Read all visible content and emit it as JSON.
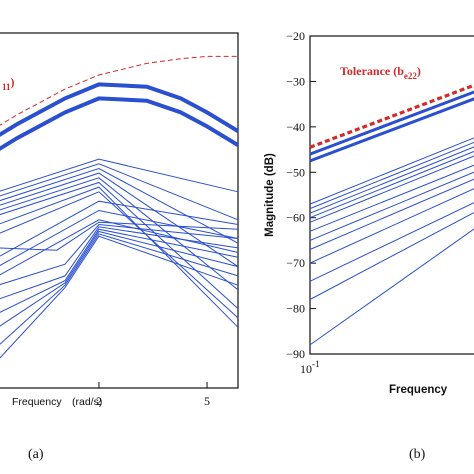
{
  "colors": {
    "series": "#2a4fd0",
    "tolerance": "#d42a2a",
    "axis": "#111111"
  },
  "chart_data": [
    {
      "panel": "a",
      "type": "line",
      "panel_label": "(a)",
      "xlabel_left": "Frequency",
      "xlabel_right": "(rad/s)",
      "xscale": "log",
      "xticks": [
        2,
        5
      ],
      "xlim": [
        0.85,
        6.5
      ],
      "ylim": [
        -92,
        -16
      ],
      "annotation": {
        "text_main": "",
        "text_sub": "11",
        "text_close": ")"
      },
      "tolerance": {
        "x": [
          0.85,
          1,
          1.5,
          2,
          3,
          4,
          5,
          6.5
        ],
        "y": [
          -36,
          -33.5,
          -28,
          -25,
          -22.5,
          -21.5,
          -21,
          -21
        ]
      },
      "thick_series": [
        {
          "x": [
            0.85,
            1,
            1.5,
            2,
            3,
            4,
            5,
            6.5
          ],
          "y": [
            -38,
            -35.5,
            -30,
            -27,
            -27.5,
            -30,
            -33,
            -37
          ]
        },
        {
          "x": [
            0.85,
            1,
            1.5,
            2,
            3,
            4,
            5,
            6.5
          ],
          "y": [
            -41,
            -38.5,
            -33,
            -30,
            -30.5,
            -33,
            -36,
            -40
          ]
        }
      ],
      "series": [
        {
          "x": [
            0.85,
            2,
            6.5
          ],
          "y": [
            -50,
            -43,
            -50
          ]
        },
        {
          "x": [
            0.85,
            2,
            6.5
          ],
          "y": [
            -51,
            -44,
            -56
          ]
        },
        {
          "x": [
            0.85,
            2,
            6.5
          ],
          "y": [
            -52,
            -45,
            -61
          ]
        },
        {
          "x": [
            0.85,
            2,
            6.5
          ],
          "y": [
            -53,
            -46,
            -66
          ]
        },
        {
          "x": [
            0.85,
            2,
            6.5
          ],
          "y": [
            -54,
            -47,
            -71
          ]
        },
        {
          "x": [
            0.85,
            2,
            6.5
          ],
          "y": [
            -55,
            -48,
            -75
          ]
        },
        {
          "x": [
            0.85,
            2,
            6.5
          ],
          "y": [
            -57,
            -49,
            -79
          ]
        },
        {
          "x": [
            0.85,
            2,
            6.5
          ],
          "y": [
            -59,
            -50,
            -77
          ]
        },
        {
          "x": [
            0.85,
            2,
            6.5
          ],
          "y": [
            -64,
            -52,
            -57
          ]
        },
        {
          "x": [
            0.85,
            2,
            6.5
          ],
          "y": [
            -66,
            -54,
            -60
          ]
        },
        {
          "x": [
            0.85,
            2,
            6.5
          ],
          "y": [
            -68,
            -56,
            -63
          ]
        },
        {
          "x": [
            0.85,
            1.4,
            2,
            6.5
          ],
          "y": [
            -62,
            -62.5,
            -56.5,
            -58
          ]
        },
        {
          "x": [
            0.85,
            1.5,
            2,
            6.5
          ],
          "y": [
            -70,
            -65.5,
            -57,
            -60
          ]
        },
        {
          "x": [
            0.85,
            1.5,
            2,
            6.5
          ],
          "y": [
            -73,
            -68,
            -57.5,
            -62
          ]
        },
        {
          "x": [
            0.85,
            1.5,
            2,
            6.5
          ],
          "y": [
            -76,
            -69,
            -58,
            -64
          ]
        },
        {
          "x": [
            0.85,
            1.5,
            2,
            6.5
          ],
          "y": [
            -79,
            -69.5,
            -58.5,
            -66
          ]
        },
        {
          "x": [
            0.85,
            1.5,
            2,
            6.5
          ],
          "y": [
            -83,
            -70,
            -59,
            -68
          ]
        },
        {
          "x": [
            0.85,
            1.5,
            2,
            6.5
          ],
          "y": [
            -86,
            -70.5,
            -59.5,
            -70
          ]
        }
      ]
    },
    {
      "panel": "b",
      "type": "line",
      "panel_label": "(b)",
      "xlabel": "Frequency",
      "ylabel": "Magnitude (dB)",
      "xscale": "log",
      "xlim": [
        0.1,
        0.3
      ],
      "ylim": [
        -90,
        -20
      ],
      "yticks": [
        -20,
        -30,
        -40,
        -50,
        -60,
        -70,
        -80,
        -90
      ],
      "xtick_label_base": "10",
      "xtick_label_exp": "-1",
      "annotation": {
        "text_main": "Tolerance (b",
        "text_sub": "e22",
        "text_close": ")"
      },
      "tolerance": {
        "x": [
          0.1,
          0.3
        ],
        "y": [
          -44.5,
          -29.5
        ]
      },
      "thick_series": [
        {
          "x": [
            0.1,
            0.3
          ],
          "y": [
            -46,
            -31
          ]
        },
        {
          "x": [
            0.1,
            0.3
          ],
          "y": [
            -47.5,
            -32.5
          ]
        }
      ],
      "series": [
        {
          "x": [
            0.1,
            0.3
          ],
          "y": [
            -57,
            -41
          ]
        },
        {
          "x": [
            0.1,
            0.3
          ],
          "y": [
            -58,
            -42
          ]
        },
        {
          "x": [
            0.1,
            0.3
          ],
          "y": [
            -59,
            -43
          ]
        },
        {
          "x": [
            0.1,
            0.3
          ],
          "y": [
            -60,
            -44
          ]
        },
        {
          "x": [
            0.1,
            0.3
          ],
          "y": [
            -61,
            -45
          ]
        },
        {
          "x": [
            0.1,
            0.3
          ],
          "y": [
            -63,
            -47
          ]
        },
        {
          "x": [
            0.1,
            0.3
          ],
          "y": [
            -65,
            -48.5
          ]
        },
        {
          "x": [
            0.1,
            0.3
          ],
          "y": [
            -67,
            -50
          ]
        },
        {
          "x": [
            0.1,
            0.3
          ],
          "y": [
            -70,
            -52
          ]
        },
        {
          "x": [
            0.1,
            0.3
          ],
          "y": [
            -74,
            -55
          ]
        },
        {
          "x": [
            0.1,
            0.3
          ],
          "y": [
            -78,
            -57
          ]
        },
        {
          "x": [
            0.1,
            0.3
          ],
          "y": [
            -88,
            -60
          ]
        }
      ]
    }
  ]
}
